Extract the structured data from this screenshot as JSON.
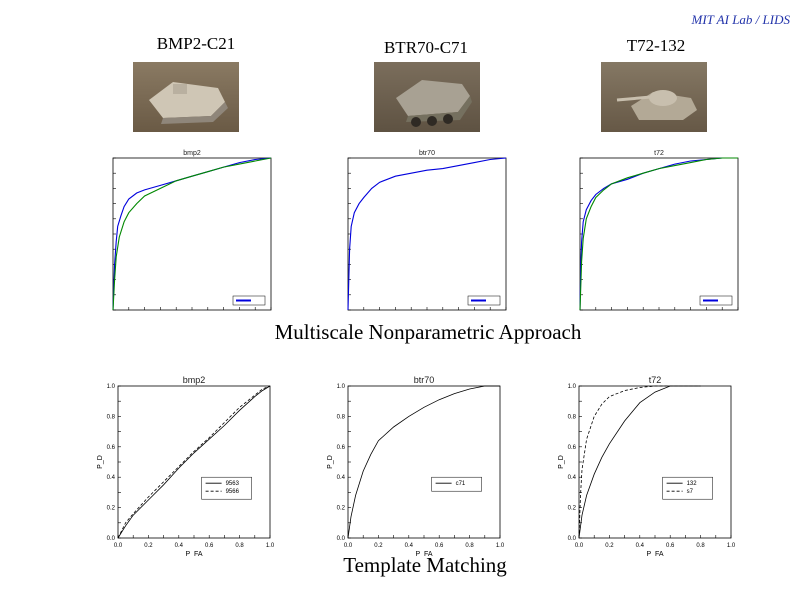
{
  "credit": "MIT AI Lab / LIDS",
  "vehicles": [
    {
      "name": "BMP2-C21",
      "photo_icon": "tank-photo"
    },
    {
      "name": "BTR70-C71",
      "photo_icon": "tank-photo"
    },
    {
      "name": "T72-132",
      "photo_icon": "tank-photo"
    }
  ],
  "sections": {
    "top": "Multiscale Nonparametric Approach",
    "bottom": "Template Matching"
  },
  "colors": {
    "blue": "#0000dd",
    "green": "#008800",
    "black": "#000000",
    "credit": "#2233aa"
  },
  "chart_data": [
    {
      "type": "line",
      "title": "bmp2",
      "grid": false,
      "xlim": [
        0,
        1
      ],
      "ylim": [
        0,
        1
      ],
      "series": [
        {
          "color": "blue",
          "x": [
            0,
            0.005,
            0.01,
            0.02,
            0.03,
            0.05,
            0.07,
            0.1,
            0.15,
            0.2,
            0.3,
            0.4,
            0.5,
            0.6,
            0.7,
            0.8,
            0.9,
            1.0
          ],
          "y": [
            0,
            0.15,
            0.3,
            0.45,
            0.55,
            0.62,
            0.68,
            0.73,
            0.77,
            0.79,
            0.82,
            0.85,
            0.88,
            0.91,
            0.94,
            0.97,
            0.99,
            1.0
          ]
        },
        {
          "color": "green",
          "x": [
            0,
            0.01,
            0.02,
            0.04,
            0.07,
            0.1,
            0.15,
            0.2,
            0.3,
            0.4,
            0.5,
            0.6,
            0.7,
            0.8,
            0.9,
            1.0
          ],
          "y": [
            0,
            0.2,
            0.35,
            0.48,
            0.58,
            0.64,
            0.7,
            0.75,
            0.8,
            0.85,
            0.88,
            0.91,
            0.94,
            0.96,
            0.98,
            1.0
          ]
        }
      ]
    },
    {
      "type": "line",
      "title": "btr70",
      "grid": false,
      "xlim": [
        0,
        1
      ],
      "ylim": [
        0,
        1
      ],
      "series": [
        {
          "color": "blue",
          "x": [
            0,
            0.005,
            0.01,
            0.02,
            0.04,
            0.07,
            0.1,
            0.15,
            0.2,
            0.3,
            0.4,
            0.5,
            0.6,
            0.7,
            0.8,
            0.9,
            1.0
          ],
          "y": [
            0,
            0.2,
            0.4,
            0.55,
            0.64,
            0.7,
            0.74,
            0.8,
            0.84,
            0.88,
            0.9,
            0.92,
            0.93,
            0.95,
            0.97,
            0.99,
            1.0
          ]
        }
      ]
    },
    {
      "type": "line",
      "title": "t72",
      "grid": false,
      "xlim": [
        0,
        1
      ],
      "ylim": [
        0,
        1
      ],
      "series": [
        {
          "color": "blue",
          "x": [
            0,
            0.005,
            0.01,
            0.02,
            0.04,
            0.07,
            0.1,
            0.15,
            0.2,
            0.3,
            0.4,
            0.5,
            0.6,
            0.7,
            0.8,
            0.9,
            1.0
          ],
          "y": [
            0,
            0.3,
            0.45,
            0.58,
            0.66,
            0.72,
            0.76,
            0.8,
            0.83,
            0.86,
            0.9,
            0.93,
            0.96,
            0.98,
            0.99,
            1.0,
            1.0
          ]
        },
        {
          "color": "green",
          "x": [
            0,
            0.01,
            0.02,
            0.04,
            0.07,
            0.1,
            0.15,
            0.2,
            0.3,
            0.4,
            0.5,
            0.6,
            0.7,
            0.8,
            0.9,
            1.0
          ],
          "y": [
            0,
            0.32,
            0.47,
            0.6,
            0.68,
            0.74,
            0.79,
            0.83,
            0.87,
            0.9,
            0.93,
            0.95,
            0.97,
            0.99,
            1.0,
            1.0
          ]
        }
      ]
    },
    {
      "type": "line",
      "title": "bmp2",
      "grid": false,
      "xlabel": "P_FA",
      "ylabel": "P_D",
      "xlim": [
        0,
        1
      ],
      "ylim": [
        0,
        1
      ],
      "xticks": [
        "0.0",
        "0.2",
        "0.4",
        "0.6",
        "0.8",
        "1.0"
      ],
      "yticks": [
        "0.0",
        "0.2",
        "0.4",
        "0.6",
        "0.8",
        "1.0"
      ],
      "legend_position": "right",
      "series": [
        {
          "name": "9563",
          "color": "black",
          "dash": "solid",
          "x": [
            0,
            0.05,
            0.1,
            0.2,
            0.3,
            0.4,
            0.5,
            0.6,
            0.7,
            0.8,
            0.9,
            0.95,
            1.0
          ],
          "y": [
            0,
            0.08,
            0.15,
            0.25,
            0.35,
            0.46,
            0.56,
            0.65,
            0.74,
            0.84,
            0.93,
            0.97,
            1.0
          ]
        },
        {
          "name": "9566",
          "color": "black",
          "dash": "dashed",
          "x": [
            0,
            0.05,
            0.1,
            0.2,
            0.3,
            0.4,
            0.5,
            0.6,
            0.7,
            0.8,
            0.9,
            0.95,
            1.0
          ],
          "y": [
            0,
            0.1,
            0.16,
            0.27,
            0.37,
            0.47,
            0.57,
            0.66,
            0.76,
            0.86,
            0.94,
            0.98,
            1.0
          ]
        }
      ]
    },
    {
      "type": "line",
      "title": "btr70",
      "grid": false,
      "xlabel": "P_FA",
      "ylabel": "P_D",
      "xlim": [
        0,
        1
      ],
      "ylim": [
        0,
        1
      ],
      "xticks": [
        "0.0",
        "0.2",
        "0.4",
        "0.6",
        "0.8",
        "1.0"
      ],
      "yticks": [
        "0.0",
        "0.2",
        "0.4",
        "0.6",
        "0.8",
        "1.0"
      ],
      "legend_position": "right",
      "series": [
        {
          "name": "c71",
          "color": "black",
          "dash": "solid",
          "x": [
            0,
            0.02,
            0.05,
            0.1,
            0.15,
            0.2,
            0.3,
            0.4,
            0.5,
            0.6,
            0.7,
            0.8,
            0.9,
            1.0
          ],
          "y": [
            0,
            0.14,
            0.28,
            0.44,
            0.55,
            0.64,
            0.73,
            0.8,
            0.86,
            0.91,
            0.95,
            0.98,
            1.0,
            1.0
          ]
        }
      ]
    },
    {
      "type": "line",
      "title": "t72",
      "grid": false,
      "xlabel": "P_FA",
      "ylabel": "P_D",
      "xlim": [
        0,
        1
      ],
      "ylim": [
        0,
        1
      ],
      "xticks": [
        "0.0",
        "0.2",
        "0.4",
        "0.6",
        "0.8",
        "1.0"
      ],
      "yticks": [
        "0.0",
        "0.2",
        "0.4",
        "0.6",
        "0.8",
        "1.0"
      ],
      "legend_position": "right",
      "series": [
        {
          "name": "132",
          "color": "black",
          "dash": "solid",
          "x": [
            0,
            0.02,
            0.05,
            0.1,
            0.15,
            0.2,
            0.3,
            0.4,
            0.5,
            0.6,
            0.7,
            0.8
          ],
          "y": [
            0,
            0.15,
            0.28,
            0.42,
            0.53,
            0.62,
            0.77,
            0.89,
            0.96,
            1.0,
            1.0,
            1.0
          ]
        },
        {
          "name": "s7",
          "color": "black",
          "dash": "dashed",
          "x": [
            0,
            0.01,
            0.02,
            0.05,
            0.1,
            0.15,
            0.2,
            0.3,
            0.4,
            0.5,
            0.6,
            0.7,
            0.8
          ],
          "y": [
            0,
            0.28,
            0.45,
            0.65,
            0.8,
            0.88,
            0.93,
            0.97,
            0.99,
            1.0,
            1.0,
            1.0,
            1.0
          ]
        }
      ]
    }
  ]
}
